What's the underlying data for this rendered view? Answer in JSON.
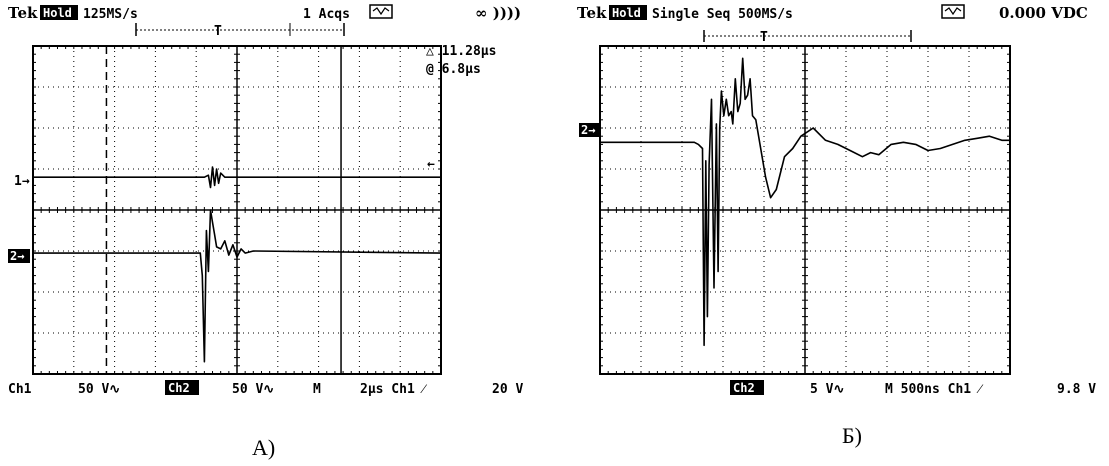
{
  "chart_data": [
    {
      "type": "line",
      "panel": "A",
      "caption": "А)",
      "header": {
        "brand": "Tek",
        "hold": "Hold",
        "rate": "125MS/s",
        "acqs": "1 Acqs",
        "inf": "∞ ))))"
      },
      "cursor_readout": [
        "△ 11.28µs",
        "@ 6.8µs"
      ],
      "footer": {
        "ch1": "Ch1",
        "ch1_scale": "50 V∿",
        "ch2": "Ch2",
        "ch2_scale": "50 V∿",
        "m": "M",
        "timebase": "2µs Ch1 ⁄",
        "trigger_level": "20 V"
      },
      "markers": {
        "ch1": "1→",
        "ch2": "2→",
        "trigger_arrow": "←"
      },
      "grid": {
        "divisions_x": 10,
        "divisions_y": 8,
        "minor_per_div": 5
      },
      "xlim": [
        0,
        20
      ],
      "ylim": [
        -4,
        4
      ],
      "cursor_x_div": [
        1.8,
        7.55
      ],
      "series": [
        {
          "points": [
            [
              0,
              0.8
            ],
            [
              4.2,
              0.8
            ],
            [
              4.3,
              0.85
            ],
            [
              4.35,
              0.55
            ],
            [
              4.4,
              1.05
            ],
            [
              4.45,
              0.6
            ],
            [
              4.5,
              1.0
            ],
            [
              4.55,
              0.65
            ],
            [
              4.6,
              0.9
            ],
            [
              4.7,
              0.8
            ],
            [
              10,
              0.8
            ]
          ]
        },
        {
          "points": [
            [
              0,
              -1.05
            ],
            [
              4.1,
              -1.05
            ],
            [
              4.15,
              -1.6
            ],
            [
              4.2,
              -3.7
            ],
            [
              4.25,
              -0.5
            ],
            [
              4.3,
              -1.5
            ],
            [
              4.35,
              0.0
            ],
            [
              4.4,
              -0.3
            ],
            [
              4.45,
              -0.6
            ],
            [
              4.5,
              -0.9
            ],
            [
              4.6,
              -0.95
            ],
            [
              4.7,
              -0.75
            ],
            [
              4.8,
              -1.1
            ],
            [
              4.9,
              -0.85
            ],
            [
              5.0,
              -1.15
            ],
            [
              5.1,
              -0.95
            ],
            [
              5.2,
              -1.05
            ],
            [
              5.4,
              -1.0
            ],
            [
              10,
              -1.05
            ]
          ]
        }
      ]
    },
    {
      "type": "line",
      "panel": "Б",
      "caption": "Б)",
      "header": {
        "brand": "Tek",
        "hold": "Hold",
        "label": "Single Seq 500MS/s",
        "dc": "0.000 VDC"
      },
      "footer": {
        "ch2": "Ch2",
        "ch2_scale": "5 V∿",
        "timebase": "M 500ns Ch1 ⁄",
        "trigger_level": "9.8 V"
      },
      "markers": {
        "ch2": "2→"
      },
      "grid": {
        "divisions_x": 10,
        "divisions_y": 8,
        "minor_per_div": 5
      },
      "xlim": [
        0,
        5000
      ],
      "ylim": [
        -4,
        4
      ],
      "series": [
        {
          "points": [
            [
              0,
              1.65
            ],
            [
              1150,
              1.65
            ],
            [
              1200,
              1.6
            ],
            [
              1250,
              1.5
            ],
            [
              1270,
              -3.3
            ],
            [
              1290,
              1.2
            ],
            [
              1310,
              -2.6
            ],
            [
              1330,
              1.1
            ],
            [
              1360,
              2.7
            ],
            [
              1390,
              -1.9
            ],
            [
              1420,
              2.1
            ],
            [
              1440,
              -1.5
            ],
            [
              1460,
              2.0
            ],
            [
              1480,
              2.9
            ],
            [
              1510,
              2.3
            ],
            [
              1540,
              2.7
            ],
            [
              1570,
              2.3
            ],
            [
              1600,
              2.4
            ],
            [
              1620,
              2.1
            ],
            [
              1650,
              3.2
            ],
            [
              1680,
              2.4
            ],
            [
              1710,
              2.6
            ],
            [
              1740,
              3.7
            ],
            [
              1770,
              2.7
            ],
            [
              1800,
              2.8
            ],
            [
              1830,
              3.2
            ],
            [
              1860,
              2.3
            ],
            [
              1900,
              2.2
            ],
            [
              1960,
              1.5
            ],
            [
              2020,
              0.8
            ],
            [
              2080,
              0.3
            ],
            [
              2150,
              0.5
            ],
            [
              2250,
              1.3
            ],
            [
              2350,
              1.5
            ],
            [
              2450,
              1.8
            ],
            [
              2600,
              2.0
            ],
            [
              2750,
              1.7
            ],
            [
              2900,
              1.6
            ],
            [
              3050,
              1.45
            ],
            [
              3200,
              1.3
            ],
            [
              3300,
              1.4
            ],
            [
              3400,
              1.35
            ],
            [
              3550,
              1.6
            ],
            [
              3700,
              1.65
            ],
            [
              3850,
              1.6
            ],
            [
              4000,
              1.45
            ],
            [
              4150,
              1.5
            ],
            [
              4300,
              1.6
            ],
            [
              4450,
              1.7
            ],
            [
              4600,
              1.75
            ],
            [
              4750,
              1.8
            ],
            [
              4900,
              1.7
            ],
            [
              5000,
              1.7
            ]
          ]
        }
      ]
    }
  ]
}
